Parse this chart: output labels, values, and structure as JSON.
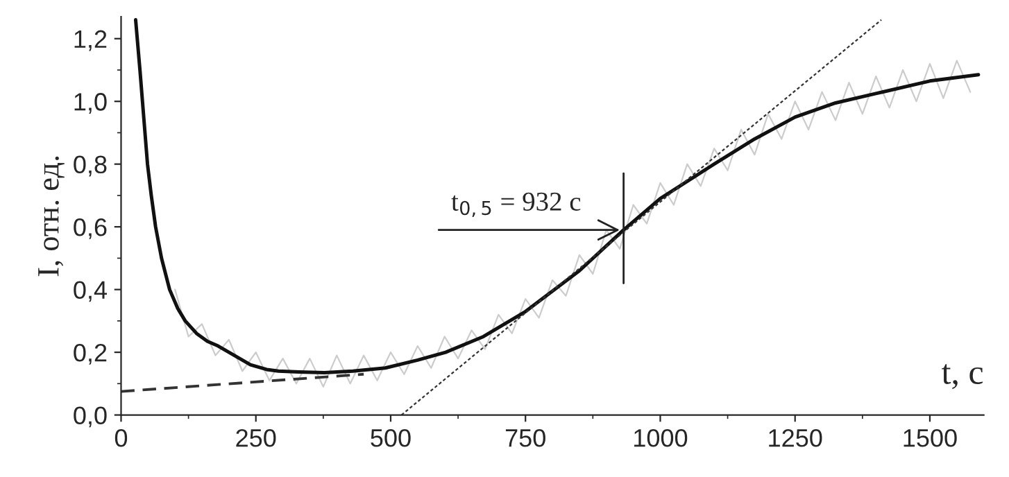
{
  "chart_data": {
    "type": "line",
    "xlabel": "t, c",
    "ylabel": "I, отн. ед.",
    "xlim": [
      0,
      1600
    ],
    "ylim": [
      0,
      1.27
    ],
    "xticks": [
      0,
      250,
      500,
      750,
      1000,
      1250,
      1500
    ],
    "yticks": [
      {
        "value": 0,
        "label": "0,0"
      },
      {
        "value": 0.2,
        "label": "0,2"
      },
      {
        "value": 0.4,
        "label": "0,4"
      },
      {
        "value": 0.6,
        "label": "0,6"
      },
      {
        "value": 0.8,
        "label": "0,8"
      },
      {
        "value": 1.0,
        "label": "1,0"
      },
      {
        "value": 1.2,
        "label": "1,2"
      }
    ],
    "grid": false,
    "legend": false,
    "marker": "none",
    "series": [
      {
        "color": "#cccccc",
        "line_style": "solid",
        "x": [
          100,
          125,
          150,
          175,
          200,
          225,
          250,
          275,
          300,
          325,
          350,
          375,
          400,
          425,
          450,
          475,
          500,
          525,
          550,
          575,
          600,
          625,
          650,
          675,
          700,
          725,
          750,
          775,
          800,
          825,
          850,
          875,
          900,
          925,
          950,
          975,
          1000,
          1025,
          1050,
          1075,
          1100,
          1125,
          1150,
          1175,
          1200,
          1225,
          1250,
          1275,
          1300,
          1325,
          1350,
          1375,
          1400,
          1425,
          1450,
          1475,
          1500,
          1525,
          1550,
          1575
        ],
        "values": [
          0.4,
          0.25,
          0.29,
          0.19,
          0.24,
          0.14,
          0.2,
          0.11,
          0.18,
          0.1,
          0.18,
          0.09,
          0.19,
          0.1,
          0.19,
          0.11,
          0.2,
          0.13,
          0.22,
          0.15,
          0.25,
          0.18,
          0.27,
          0.21,
          0.32,
          0.26,
          0.37,
          0.31,
          0.43,
          0.38,
          0.51,
          0.45,
          0.59,
          0.53,
          0.67,
          0.61,
          0.74,
          0.67,
          0.8,
          0.73,
          0.85,
          0.78,
          0.91,
          0.83,
          0.96,
          0.88,
          1.0,
          0.91,
          1.03,
          0.94,
          1.06,
          0.96,
          1.08,
          0.98,
          1.1,
          1.0,
          1.12,
          1.01,
          1.13,
          1.03
        ]
      },
      {
        "color": "#111111",
        "line_style": "solid",
        "x": [
          27,
          35,
          42,
          49,
          56,
          64,
          75,
          90,
          105,
          119,
          140,
          160,
          180,
          210,
          240,
          270,
          292,
          330,
          377,
          430,
          490,
          550,
          602,
          672,
          750,
          850,
          932,
          1000,
          1100,
          1175,
          1250,
          1325,
          1400,
          1500,
          1590
        ],
        "values": [
          1.26,
          1.1,
          0.95,
          0.8,
          0.7,
          0.6,
          0.5,
          0.4,
          0.34,
          0.3,
          0.26,
          0.235,
          0.22,
          0.19,
          0.16,
          0.145,
          0.14,
          0.137,
          0.135,
          0.14,
          0.15,
          0.175,
          0.2,
          0.25,
          0.33,
          0.46,
          0.59,
          0.69,
          0.8,
          0.88,
          0.95,
          0.995,
          1.025,
          1.065,
          1.085
        ]
      },
      {
        "color": "#333333",
        "line_style": "dashed",
        "x": [
          0,
          450
        ],
        "values": [
          0.075,
          0.13
        ]
      },
      {
        "color": "#333333",
        "line_style": "dotted",
        "x": [
          520,
          1410
        ],
        "values": [
          0,
          1.26
        ]
      }
    ],
    "ref_lines": [
      {
        "axis": "x",
        "value": 932,
        "color": "#222222"
      }
    ],
    "annotations": [
      {
        "text": "t$_{0,5}$ = 932 c",
        "x": 932,
        "y": 0.59
      }
    ]
  }
}
